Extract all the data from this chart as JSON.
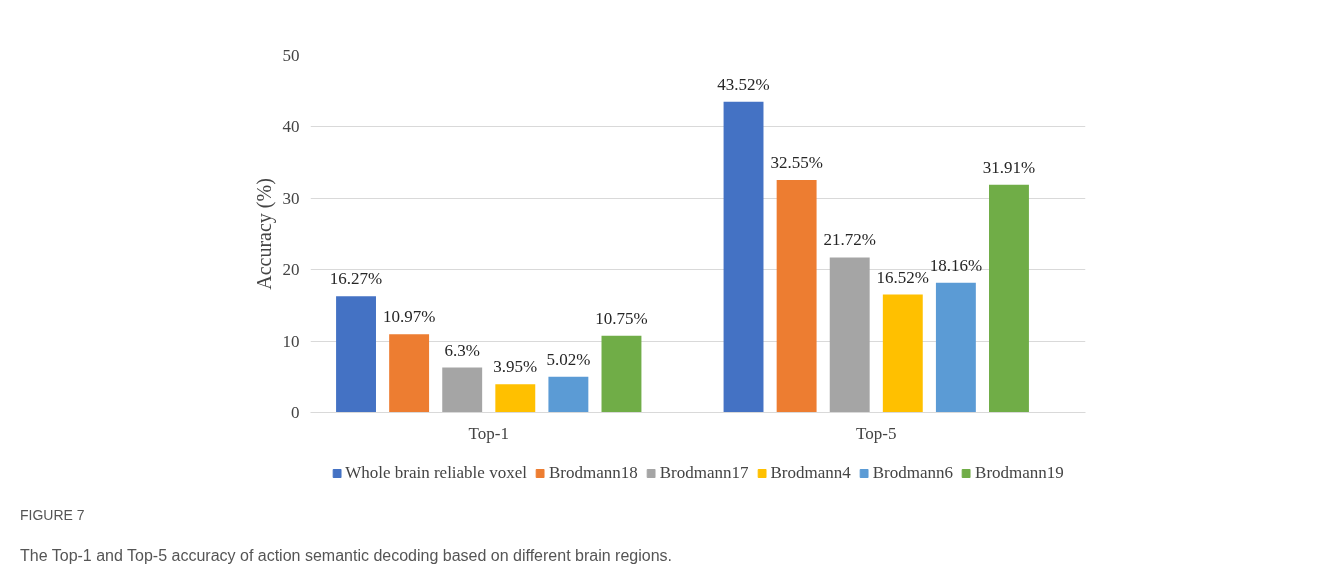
{
  "chart_data": {
    "type": "bar",
    "ylabel": "Accuracy (%)",
    "categories": [
      "Top-1",
      "Top-5"
    ],
    "series": [
      {
        "name": "Whole brain reliable voxel",
        "color": "#4472c4",
        "values": [
          16.27,
          43.52
        ],
        "value_labels": [
          "16.27%",
          "43.52%"
        ]
      },
      {
        "name": "Brodmann18",
        "color": "#ed7d31",
        "values": [
          10.97,
          32.55
        ],
        "value_labels": [
          "10.97%",
          "32.55%"
        ]
      },
      {
        "name": "Brodmann17",
        "color": "#a5a5a5",
        "values": [
          6.3,
          21.72
        ],
        "value_labels": [
          "6.3%",
          "21.72%"
        ]
      },
      {
        "name": "Brodmann4",
        "color": "#ffc000",
        "values": [
          3.95,
          16.52
        ],
        "value_labels": [
          "3.95%",
          "16.52%"
        ]
      },
      {
        "name": "Brodmann6",
        "color": "#5b9bd5",
        "values": [
          5.02,
          18.16
        ],
        "value_labels": [
          "5.02%",
          "18.16%"
        ]
      },
      {
        "name": "Brodmann19",
        "color": "#70ad47",
        "values": [
          10.75,
          31.91
        ],
        "value_labels": [
          "10.75%",
          "31.91%"
        ]
      }
    ],
    "ylim": [
      0,
      50
    ],
    "yticks": [
      0,
      10,
      20,
      30,
      40,
      50
    ],
    "grid": "y",
    "legend": "bottom",
    "annotations": [
      "FIGURE 7",
      "The Top-1 and Top-5 accuracy of action semantic decoding based on different brain regions."
    ]
  }
}
